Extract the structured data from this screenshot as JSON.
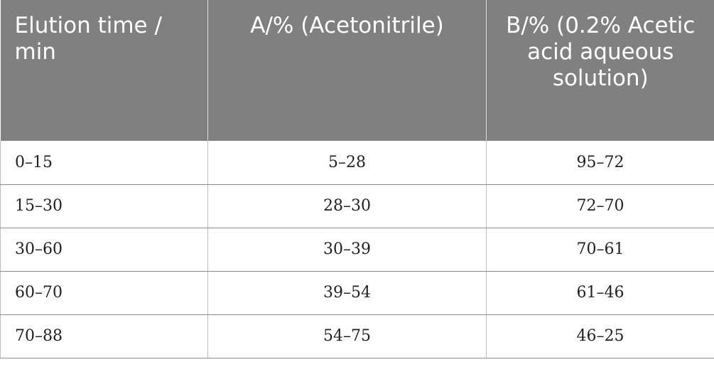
{
  "table": {
    "headers": [
      "Elution time / min",
      "A/% (Acetonitrile)",
      "B/% (0.2% Acetic acid aqueous solution)"
    ],
    "rows": [
      [
        "0–15",
        "5–28",
        "95–72"
      ],
      [
        "15–30",
        "28–30",
        "72–70"
      ],
      [
        "30–60",
        "30–39",
        "70–61"
      ],
      [
        "60–70",
        "39–54",
        "61–46"
      ],
      [
        "70–88",
        "54–75",
        "46–25"
      ]
    ]
  }
}
